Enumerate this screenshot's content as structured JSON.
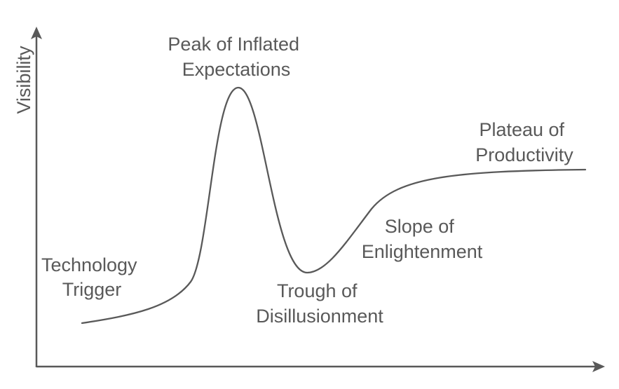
{
  "axes": {
    "y_label": "Visibility",
    "x_label": ""
  },
  "colors": {
    "line": "#595959",
    "text": "#595959",
    "background": "#ffffff"
  },
  "phases": [
    {
      "line1": "Technology",
      "line2": "Trigger"
    },
    {
      "line1": "Peak of Inflated",
      "line2": "Expectations"
    },
    {
      "line1": "Trough of",
      "line2": "Disillusionment"
    },
    {
      "line1": "Slope of",
      "line2": "Enlightenment"
    },
    {
      "line1": "Plateau of",
      "line2": "Productivity"
    }
  ]
}
